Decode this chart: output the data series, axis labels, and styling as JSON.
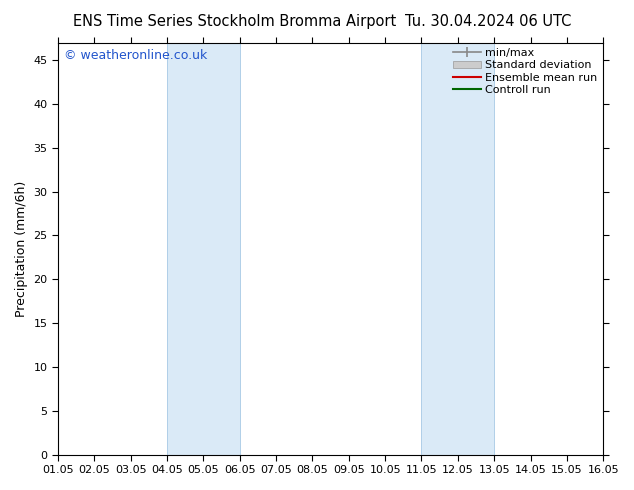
{
  "title_left": "ENS Time Series Stockholm Bromma Airport",
  "title_right": "Tu. 30.04.2024 06 UTC",
  "ylabel": "Precipitation (mm/6h)",
  "ylim": [
    0,
    47
  ],
  "yticks": [
    0,
    5,
    10,
    15,
    20,
    25,
    30,
    35,
    40,
    45
  ],
  "xtick_labels": [
    "01.05",
    "02.05",
    "03.05",
    "04.05",
    "05.05",
    "06.05",
    "07.05",
    "08.05",
    "09.05",
    "10.05",
    "11.05",
    "12.05",
    "13.05",
    "14.05",
    "15.05",
    "16.05"
  ],
  "shaded_regions": [
    {
      "xstart": 3,
      "xend": 5,
      "color": "#daeaf7",
      "border": "#b0cfe8"
    },
    {
      "xstart": 10,
      "xend": 12,
      "color": "#daeaf7",
      "border": "#b0cfe8"
    }
  ],
  "watermark": "© weatheronline.co.uk",
  "watermark_color": "#2255cc",
  "legend_items": [
    {
      "label": "min/max",
      "type": "minmax"
    },
    {
      "label": "Standard deviation",
      "type": "stddev",
      "color": "#cccccc"
    },
    {
      "label": "Ensemble mean run",
      "type": "line",
      "color": "#cc0000",
      "lw": 1.5
    },
    {
      "label": "Controll run",
      "type": "line",
      "color": "#006600",
      "lw": 1.5
    }
  ],
  "bg_color": "#ffffff",
  "plot_bg_color": "#ffffff",
  "title_fontsize": 10.5,
  "axis_label_fontsize": 9,
  "tick_fontsize": 8,
  "legend_fontsize": 8,
  "watermark_fontsize": 9
}
